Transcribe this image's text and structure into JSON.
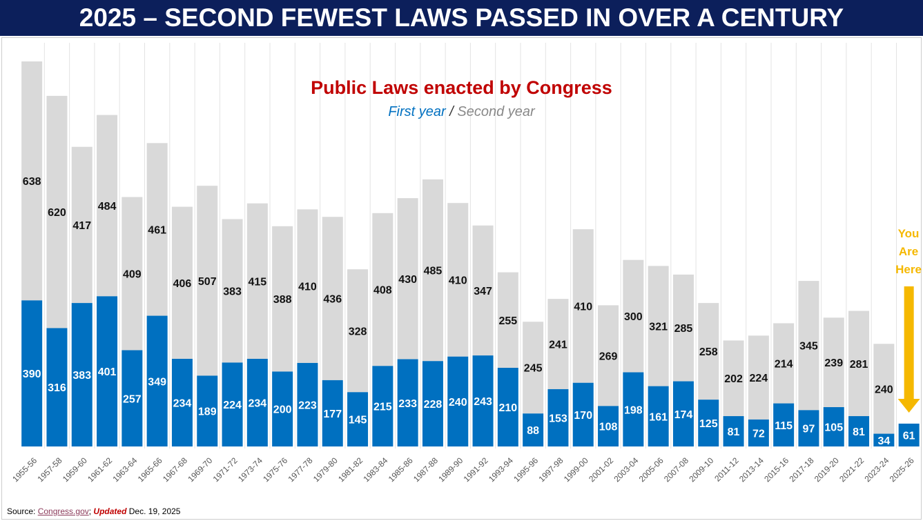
{
  "header": {
    "title": "2025 – SECOND FEWEST LAWS PASSED IN OVER A CENTURY"
  },
  "chart_data": {
    "type": "bar",
    "stacked": true,
    "title": "Public Laws enacted by Congress",
    "subtitle_first": "First year",
    "subtitle_sep": " / ",
    "subtitle_second": "Second year",
    "categories": [
      "1955-56",
      "1957-58",
      "1959-60",
      "1961-62",
      "1963-64",
      "1965-66",
      "1967-68",
      "1969-70",
      "1971-72",
      "1973-74",
      "1975-76",
      "1977-78",
      "1979-80",
      "1981-82",
      "1983-84",
      "1985-86",
      "1987-88",
      "1989-90",
      "1991-92",
      "1993-94",
      "1995-96",
      "1997-98",
      "1999-00",
      "2001-02",
      "2003-04",
      "2005-06",
      "2007-08",
      "2009-10",
      "2011-12",
      "2013-14",
      "2015-16",
      "2017-18",
      "2019-20",
      "2021-22",
      "2023-24",
      "2025-26"
    ],
    "series": [
      {
        "name": "First year",
        "color": "#0070c0",
        "values": [
          390,
          316,
          383,
          401,
          257,
          349,
          234,
          189,
          224,
          234,
          200,
          223,
          177,
          145,
          215,
          233,
          228,
          240,
          243,
          210,
          88,
          153,
          170,
          108,
          198,
          161,
          174,
          125,
          81,
          72,
          115,
          97,
          105,
          81,
          34,
          61
        ]
      },
      {
        "name": "Second year",
        "color": "#d9d9d9",
        "values": [
          638,
          620,
          417,
          484,
          409,
          461,
          406,
          507,
          383,
          415,
          388,
          410,
          436,
          328,
          408,
          430,
          485,
          410,
          347,
          255,
          245,
          241,
          410,
          269,
          300,
          321,
          285,
          258,
          202,
          224,
          214,
          345,
          239,
          281,
          240,
          null
        ]
      }
    ],
    "ylim": [
      0,
      1028
    ],
    "grid": false,
    "annotation": "You Are Here",
    "annotation_color": "#f5b800"
  },
  "footer": {
    "source_label": "Source: ",
    "source_link": "Congress.gov",
    "sep": "; ",
    "updated": "Updated",
    "date": " Dec. 19, 2025"
  }
}
